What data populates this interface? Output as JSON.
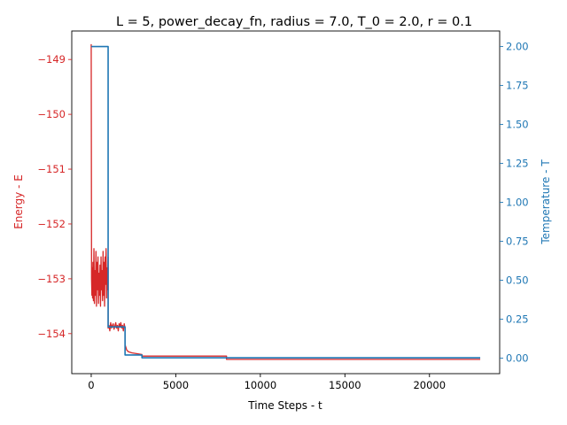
{
  "chart_data": {
    "type": "line",
    "title": "L = 5, power_decay_fn, radius = 7.0, T_0 = 2.0, r = 0.1",
    "xlabel": "Time Steps - t",
    "ylabel_left": "Energy - E",
    "ylabel_right": "Temperature - T",
    "xlim": [
      -1150,
      24150
    ],
    "ylim_left": [
      -154.73,
      -148.48
    ],
    "ylim_right": [
      -0.1,
      2.1
    ],
    "x_ticks": [
      0,
      5000,
      10000,
      15000,
      20000
    ],
    "x_tick_labels": [
      "0",
      "5000",
      "10000",
      "15000",
      "20000"
    ],
    "left_ticks": [
      -154,
      -153,
      -152,
      -151,
      -150,
      -149
    ],
    "left_tick_labels": [
      "−154",
      "−153",
      "−152",
      "−151",
      "−150",
      "−149"
    ],
    "right_ticks": [
      0.0,
      0.25,
      0.5,
      0.75,
      1.0,
      1.25,
      1.5,
      1.75,
      2.0
    ],
    "right_tick_labels": [
      "0.00",
      "0.25",
      "0.50",
      "0.75",
      "1.00",
      "1.25",
      "1.50",
      "1.75",
      "2.00"
    ],
    "grid": false,
    "colors": {
      "energy": "#d62728",
      "temperature": "#1f77b4",
      "axis": "#000000"
    },
    "series": [
      {
        "axis": "left",
        "x": [
          0,
          20,
          40,
          60,
          80,
          100,
          130,
          160,
          190,
          220,
          250,
          280,
          310,
          340,
          370,
          400,
          430,
          460,
          490,
          520,
          550,
          580,
          610,
          640,
          670,
          700,
          730,
          760,
          790,
          820,
          850,
          880,
          910,
          940,
          970,
          1000,
          1000,
          1050,
          1100,
          1150,
          1200,
          1250,
          1300,
          1350,
          1400,
          1450,
          1500,
          1550,
          1600,
          1650,
          1700,
          1750,
          1800,
          1850,
          1900,
          1950,
          2000,
          2000,
          2100,
          2200,
          2400,
          2600,
          2800,
          3000,
          3000,
          8000,
          8000,
          23000
        ],
        "y": [
          -148.72,
          -153.0,
          -153.3,
          -152.8,
          -153.35,
          -152.7,
          -153.4,
          -152.45,
          -153.45,
          -152.85,
          -153.3,
          -152.5,
          -153.5,
          -152.7,
          -153.2,
          -152.6,
          -153.45,
          -152.9,
          -153.3,
          -152.75,
          -153.5,
          -152.6,
          -153.2,
          -152.85,
          -153.4,
          -152.5,
          -153.3,
          -152.7,
          -153.5,
          -152.6,
          -153.1,
          -152.45,
          -153.35,
          -152.8,
          -153.2,
          -152.6,
          -153.9,
          -153.85,
          -153.95,
          -153.8,
          -153.9,
          -153.85,
          -153.82,
          -153.92,
          -153.86,
          -153.8,
          -153.9,
          -153.85,
          -153.95,
          -153.82,
          -153.88,
          -153.8,
          -153.9,
          -153.85,
          -153.95,
          -153.82,
          -153.9,
          -154.2,
          -154.3,
          -154.33,
          -154.35,
          -154.36,
          -154.37,
          -154.38,
          -154.41,
          -154.41,
          -154.47,
          -154.47
        ]
      },
      {
        "axis": "right",
        "x": [
          0,
          1000,
          1000,
          2000,
          2000,
          3000,
          3000,
          23000
        ],
        "y": [
          2.0,
          2.0,
          0.2,
          0.2,
          0.02,
          0.02,
          0.002,
          0.002
        ]
      }
    ]
  }
}
